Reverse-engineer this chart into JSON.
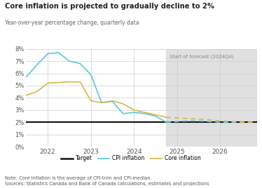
{
  "title": "Core inflation is projected to gradually decline to 2%",
  "subtitle": "Year-over-year percentage change, quarterly data",
  "note1": "Note: Core inflation is the average of CPI-trim and CPI-median.",
  "note2": "Sources: Statistics Canada and Bank of Canada calculations, estimates and projections",
  "forecast_start": 2024.75,
  "forecast_label": "Start of forecast (2024Q4)",
  "ylim": [
    0,
    8
  ],
  "yticks": [
    0,
    1,
    2,
    3,
    4,
    5,
    6,
    7,
    8
  ],
  "ytick_labels": [
    "0%",
    "1%",
    "2%",
    "3%",
    "4%",
    "5%",
    "6%",
    "7%",
    "8%"
  ],
  "xlim": [
    2021.5,
    2026.85
  ],
  "xticks": [
    2022,
    2023,
    2024,
    2025,
    2026
  ],
  "target_value": 2.0,
  "target_color": "#111111",
  "cpi_color": "#5bc8d5",
  "core_color": "#d4b84a",
  "background_color": "#ffffff",
  "forecast_bg_color": "#e0e0e0",
  "cpi_solid_x": [
    2021.5,
    2021.75,
    2022.0,
    2022.25,
    2022.5,
    2022.75,
    2023.0,
    2023.25,
    2023.5,
    2023.75,
    2024.0,
    2024.25,
    2024.5,
    2024.75
  ],
  "cpi_solid_y": [
    5.7,
    6.7,
    7.6,
    7.7,
    7.0,
    6.8,
    5.9,
    3.6,
    3.7,
    2.7,
    2.8,
    2.7,
    2.5,
    2.0
  ],
  "core_solid_x": [
    2021.5,
    2021.75,
    2022.0,
    2022.25,
    2022.5,
    2022.75,
    2023.0,
    2023.25,
    2023.5,
    2023.75,
    2024.0,
    2024.25,
    2024.5,
    2024.75
  ],
  "core_solid_y": [
    4.2,
    4.5,
    5.2,
    5.25,
    5.3,
    5.3,
    3.75,
    3.6,
    3.75,
    3.5,
    3.0,
    2.8,
    2.6,
    2.4
  ],
  "cpi_dashed_x": [
    2024.75,
    2025.0,
    2025.25,
    2025.5,
    2025.75,
    2026.0,
    2026.25,
    2026.5,
    2026.75
  ],
  "cpi_dashed_y": [
    2.0,
    2.05,
    2.1,
    2.1,
    2.05,
    2.0,
    2.0,
    2.0,
    2.0
  ],
  "core_dashed_x": [
    2024.75,
    2025.0,
    2025.25,
    2025.5,
    2025.75,
    2026.0,
    2026.25,
    2026.5,
    2026.75
  ],
  "core_dashed_y": [
    2.4,
    2.35,
    2.3,
    2.25,
    2.2,
    2.1,
    2.05,
    2.0,
    2.0
  ],
  "legend_labels": [
    "Target",
    "CPI inflation",
    "Core inflation"
  ]
}
